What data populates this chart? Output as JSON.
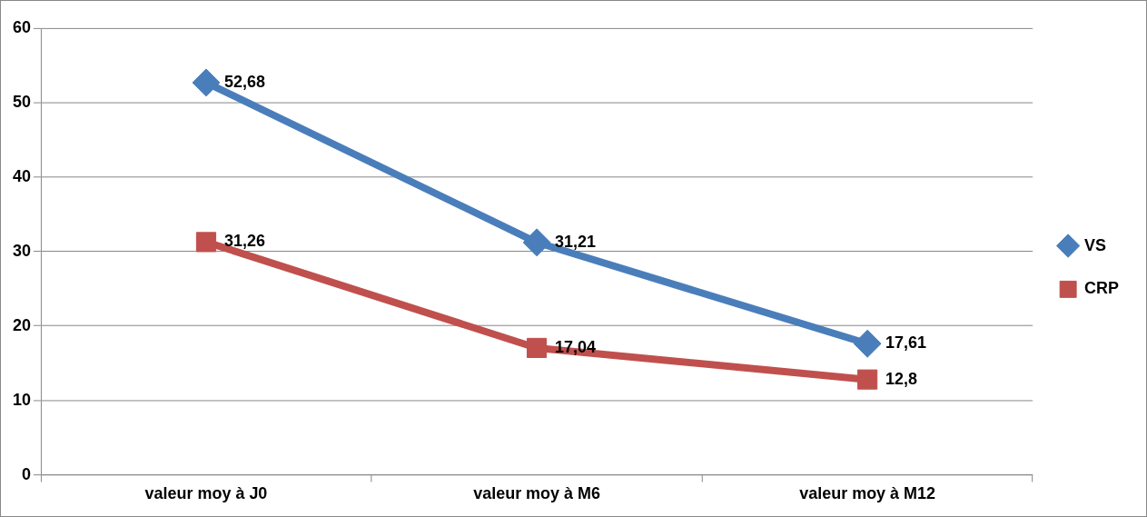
{
  "chart_data": {
    "type": "line",
    "categories": [
      "valeur moy à J0",
      "valeur moy à M6",
      "valeur moy à M12"
    ],
    "series": [
      {
        "name": "VS",
        "color": "#4a7ebb",
        "marker": "diamond",
        "values": [
          52.68,
          31.21,
          17.61
        ],
        "value_labels": [
          "52,68",
          "31,21",
          "17,61"
        ]
      },
      {
        "name": "CRP",
        "color": "#c0504d",
        "marker": "square",
        "values": [
          31.26,
          17.04,
          12.8
        ],
        "value_labels": [
          "31,26",
          "17,04",
          "12,8"
        ]
      }
    ],
    "ylim": [
      0,
      60
    ],
    "yticks": [
      0,
      10,
      20,
      30,
      40,
      50,
      60
    ],
    "grid": "y",
    "legend": "right"
  }
}
